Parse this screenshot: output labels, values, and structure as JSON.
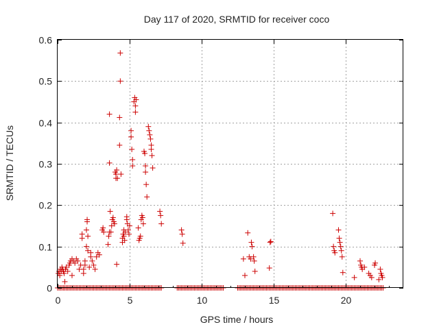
{
  "chart_data": {
    "type": "scatter",
    "title": "Day 117 of 2020, SRMTID for receiver coco",
    "xlabel": "GPS time / hours",
    "ylabel": "SRMTID / TECUs",
    "xlim": [
      0,
      24
    ],
    "ylim": [
      0,
      0.6
    ],
    "xticks": [
      0,
      5,
      10,
      15,
      20
    ],
    "xtick_labels": [
      "0",
      "5",
      "10",
      "15",
      "20"
    ],
    "yticks": [
      0,
      0.1,
      0.2,
      0.3,
      0.4,
      0.5,
      0.6
    ],
    "ytick_labels": [
      "0",
      "0.1",
      "0.2",
      "0.3",
      "0.4",
      "0.5",
      "0.6"
    ],
    "grid": true,
    "marker": "+",
    "color": "#cc0000",
    "series": [
      {
        "name": "SRMTID",
        "points": [
          [
            0.05,
            0.035
          ],
          [
            0.1,
            0.04
          ],
          [
            0.15,
            0.03
          ],
          [
            0.2,
            0.045
          ],
          [
            0.25,
            0.04
          ],
          [
            0.3,
            0.05
          ],
          [
            0.35,
            0.045
          ],
          [
            0.4,
            0.04
          ],
          [
            0.45,
            0.035
          ],
          [
            0.5,
            0.015
          ],
          [
            0.55,
            0.045
          ],
          [
            0.6,
            0.05
          ],
          [
            0.7,
            0.04
          ],
          [
            0.8,
            0.055
          ],
          [
            0.85,
            0.06
          ],
          [
            0.9,
            0.065
          ],
          [
            1.0,
            0.07
          ],
          [
            1.0,
            0.03
          ],
          [
            1.1,
            0.065
          ],
          [
            1.2,
            0.06
          ],
          [
            1.3,
            0.07
          ],
          [
            1.4,
            0.065
          ],
          [
            1.5,
            0.045
          ],
          [
            1.6,
            0.055
          ],
          [
            1.7,
            0.12
          ],
          [
            1.7,
            0.13
          ],
          [
            1.8,
            0.035
          ],
          [
            1.8,
            0.045
          ],
          [
            1.9,
            0.055
          ],
          [
            1.9,
            0.065
          ],
          [
            2.0,
            0.1
          ],
          [
            2.0,
            0.14
          ],
          [
            2.05,
            0.16
          ],
          [
            2.05,
            0.165
          ],
          [
            2.1,
            0.125
          ],
          [
            2.1,
            0.09
          ],
          [
            2.2,
            0.05
          ],
          [
            2.3,
            0.085
          ],
          [
            2.3,
            0.075
          ],
          [
            2.4,
            0.065
          ],
          [
            2.5,
            0.055
          ],
          [
            2.6,
            0.045
          ],
          [
            2.7,
            0.075
          ],
          [
            2.8,
            0.085
          ],
          [
            2.9,
            0.08
          ],
          [
            3.1,
            0.14
          ],
          [
            3.15,
            0.145
          ],
          [
            3.2,
            0.135
          ],
          [
            3.5,
            0.105
          ],
          [
            3.55,
            0.125
          ],
          [
            3.6,
            0.135
          ],
          [
            3.6,
            0.42
          ],
          [
            3.6,
            0.302
          ],
          [
            3.65,
            0.185
          ],
          [
            3.7,
            0.135
          ],
          [
            3.75,
            0.15
          ],
          [
            3.8,
            0.165
          ],
          [
            3.85,
            0.17
          ],
          [
            3.9,
            0.16
          ],
          [
            3.95,
            0.155
          ],
          [
            4.0,
            0.28
          ],
          [
            4.05,
            0.275
          ],
          [
            4.05,
            0.265
          ],
          [
            4.1,
            0.285
          ],
          [
            4.15,
            0.265
          ],
          [
            4.1,
            0.057
          ],
          [
            4.3,
            0.345
          ],
          [
            4.3,
            0.412
          ],
          [
            4.35,
            0.5
          ],
          [
            4.35,
            0.568
          ],
          [
            4.4,
            0.275
          ],
          [
            4.5,
            0.12
          ],
          [
            4.5,
            0.11
          ],
          [
            4.55,
            0.13
          ],
          [
            4.6,
            0.125
          ],
          [
            4.6,
            0.14
          ],
          [
            4.65,
            0.115
          ],
          [
            4.7,
            0.135
          ],
          [
            4.8,
            0.165
          ],
          [
            4.8,
            0.172
          ],
          [
            4.85,
            0.155
          ],
          [
            4.9,
            0.14
          ],
          [
            4.95,
            0.13
          ],
          [
            5.0,
            0.15
          ],
          [
            5.1,
            0.38
          ],
          [
            5.1,
            0.365
          ],
          [
            5.15,
            0.335
          ],
          [
            5.2,
            0.31
          ],
          [
            5.2,
            0.295
          ],
          [
            5.3,
            0.45
          ],
          [
            5.35,
            0.46
          ],
          [
            5.4,
            0.44
          ],
          [
            5.4,
            0.425
          ],
          [
            5.45,
            0.455
          ],
          [
            5.6,
            0.145
          ],
          [
            5.65,
            0.115
          ],
          [
            5.7,
            0.12
          ],
          [
            5.75,
            0.125
          ],
          [
            5.8,
            0.165
          ],
          [
            5.85,
            0.175
          ],
          [
            5.9,
            0.17
          ],
          [
            5.95,
            0.155
          ],
          [
            6.0,
            0.33
          ],
          [
            6.05,
            0.325
          ],
          [
            6.1,
            0.295
          ],
          [
            6.1,
            0.28
          ],
          [
            6.15,
            0.25
          ],
          [
            6.2,
            0.22
          ],
          [
            6.3,
            0.39
          ],
          [
            6.35,
            0.38
          ],
          [
            6.4,
            0.37
          ],
          [
            6.45,
            0.36
          ],
          [
            6.5,
            0.345
          ],
          [
            6.5,
            0.335
          ],
          [
            6.55,
            0.32
          ],
          [
            6.6,
            0.29
          ],
          [
            7.1,
            0.185
          ],
          [
            7.15,
            0.175
          ],
          [
            7.2,
            0.155
          ],
          [
            8.6,
            0.14
          ],
          [
            8.65,
            0.13
          ],
          [
            8.7,
            0.108
          ],
          [
            12.9,
            0.07
          ],
          [
            13.0,
            0.03
          ],
          [
            13.2,
            0.133
          ],
          [
            13.3,
            0.075
          ],
          [
            13.4,
            0.07
          ],
          [
            13.45,
            0.11
          ],
          [
            13.5,
            0.1
          ],
          [
            13.6,
            0.075
          ],
          [
            13.65,
            0.065
          ],
          [
            13.7,
            0.04
          ],
          [
            14.7,
            0.048
          ],
          [
            14.75,
            0.11
          ],
          [
            14.8,
            0.112
          ],
          [
            19.1,
            0.18
          ],
          [
            19.15,
            0.1
          ],
          [
            19.2,
            0.09
          ],
          [
            19.25,
            0.085
          ],
          [
            19.5,
            0.14
          ],
          [
            19.55,
            0.12
          ],
          [
            19.6,
            0.11
          ],
          [
            19.65,
            0.1
          ],
          [
            19.7,
            0.09
          ],
          [
            19.75,
            0.075
          ],
          [
            19.8,
            0.037
          ],
          [
            20.6,
            0.025
          ],
          [
            21.0,
            0.065
          ],
          [
            21.05,
            0.055
          ],
          [
            21.1,
            0.05
          ],
          [
            21.15,
            0.045
          ],
          [
            21.3,
            0.05
          ],
          [
            21.6,
            0.035
          ],
          [
            21.7,
            0.03
          ],
          [
            21.8,
            0.025
          ],
          [
            22.0,
            0.055
          ],
          [
            22.05,
            0.06
          ],
          [
            22.3,
            0.02
          ],
          [
            22.4,
            0.045
          ],
          [
            22.45,
            0.035
          ],
          [
            22.5,
            0.03
          ],
          [
            22.55,
            0.025
          ]
        ],
        "zero_runs": [
          [
            0,
            7.2
          ],
          [
            8.3,
            11.5
          ],
          [
            12.5,
            22.6
          ]
        ],
        "zero_step": 0.1
      }
    ]
  }
}
